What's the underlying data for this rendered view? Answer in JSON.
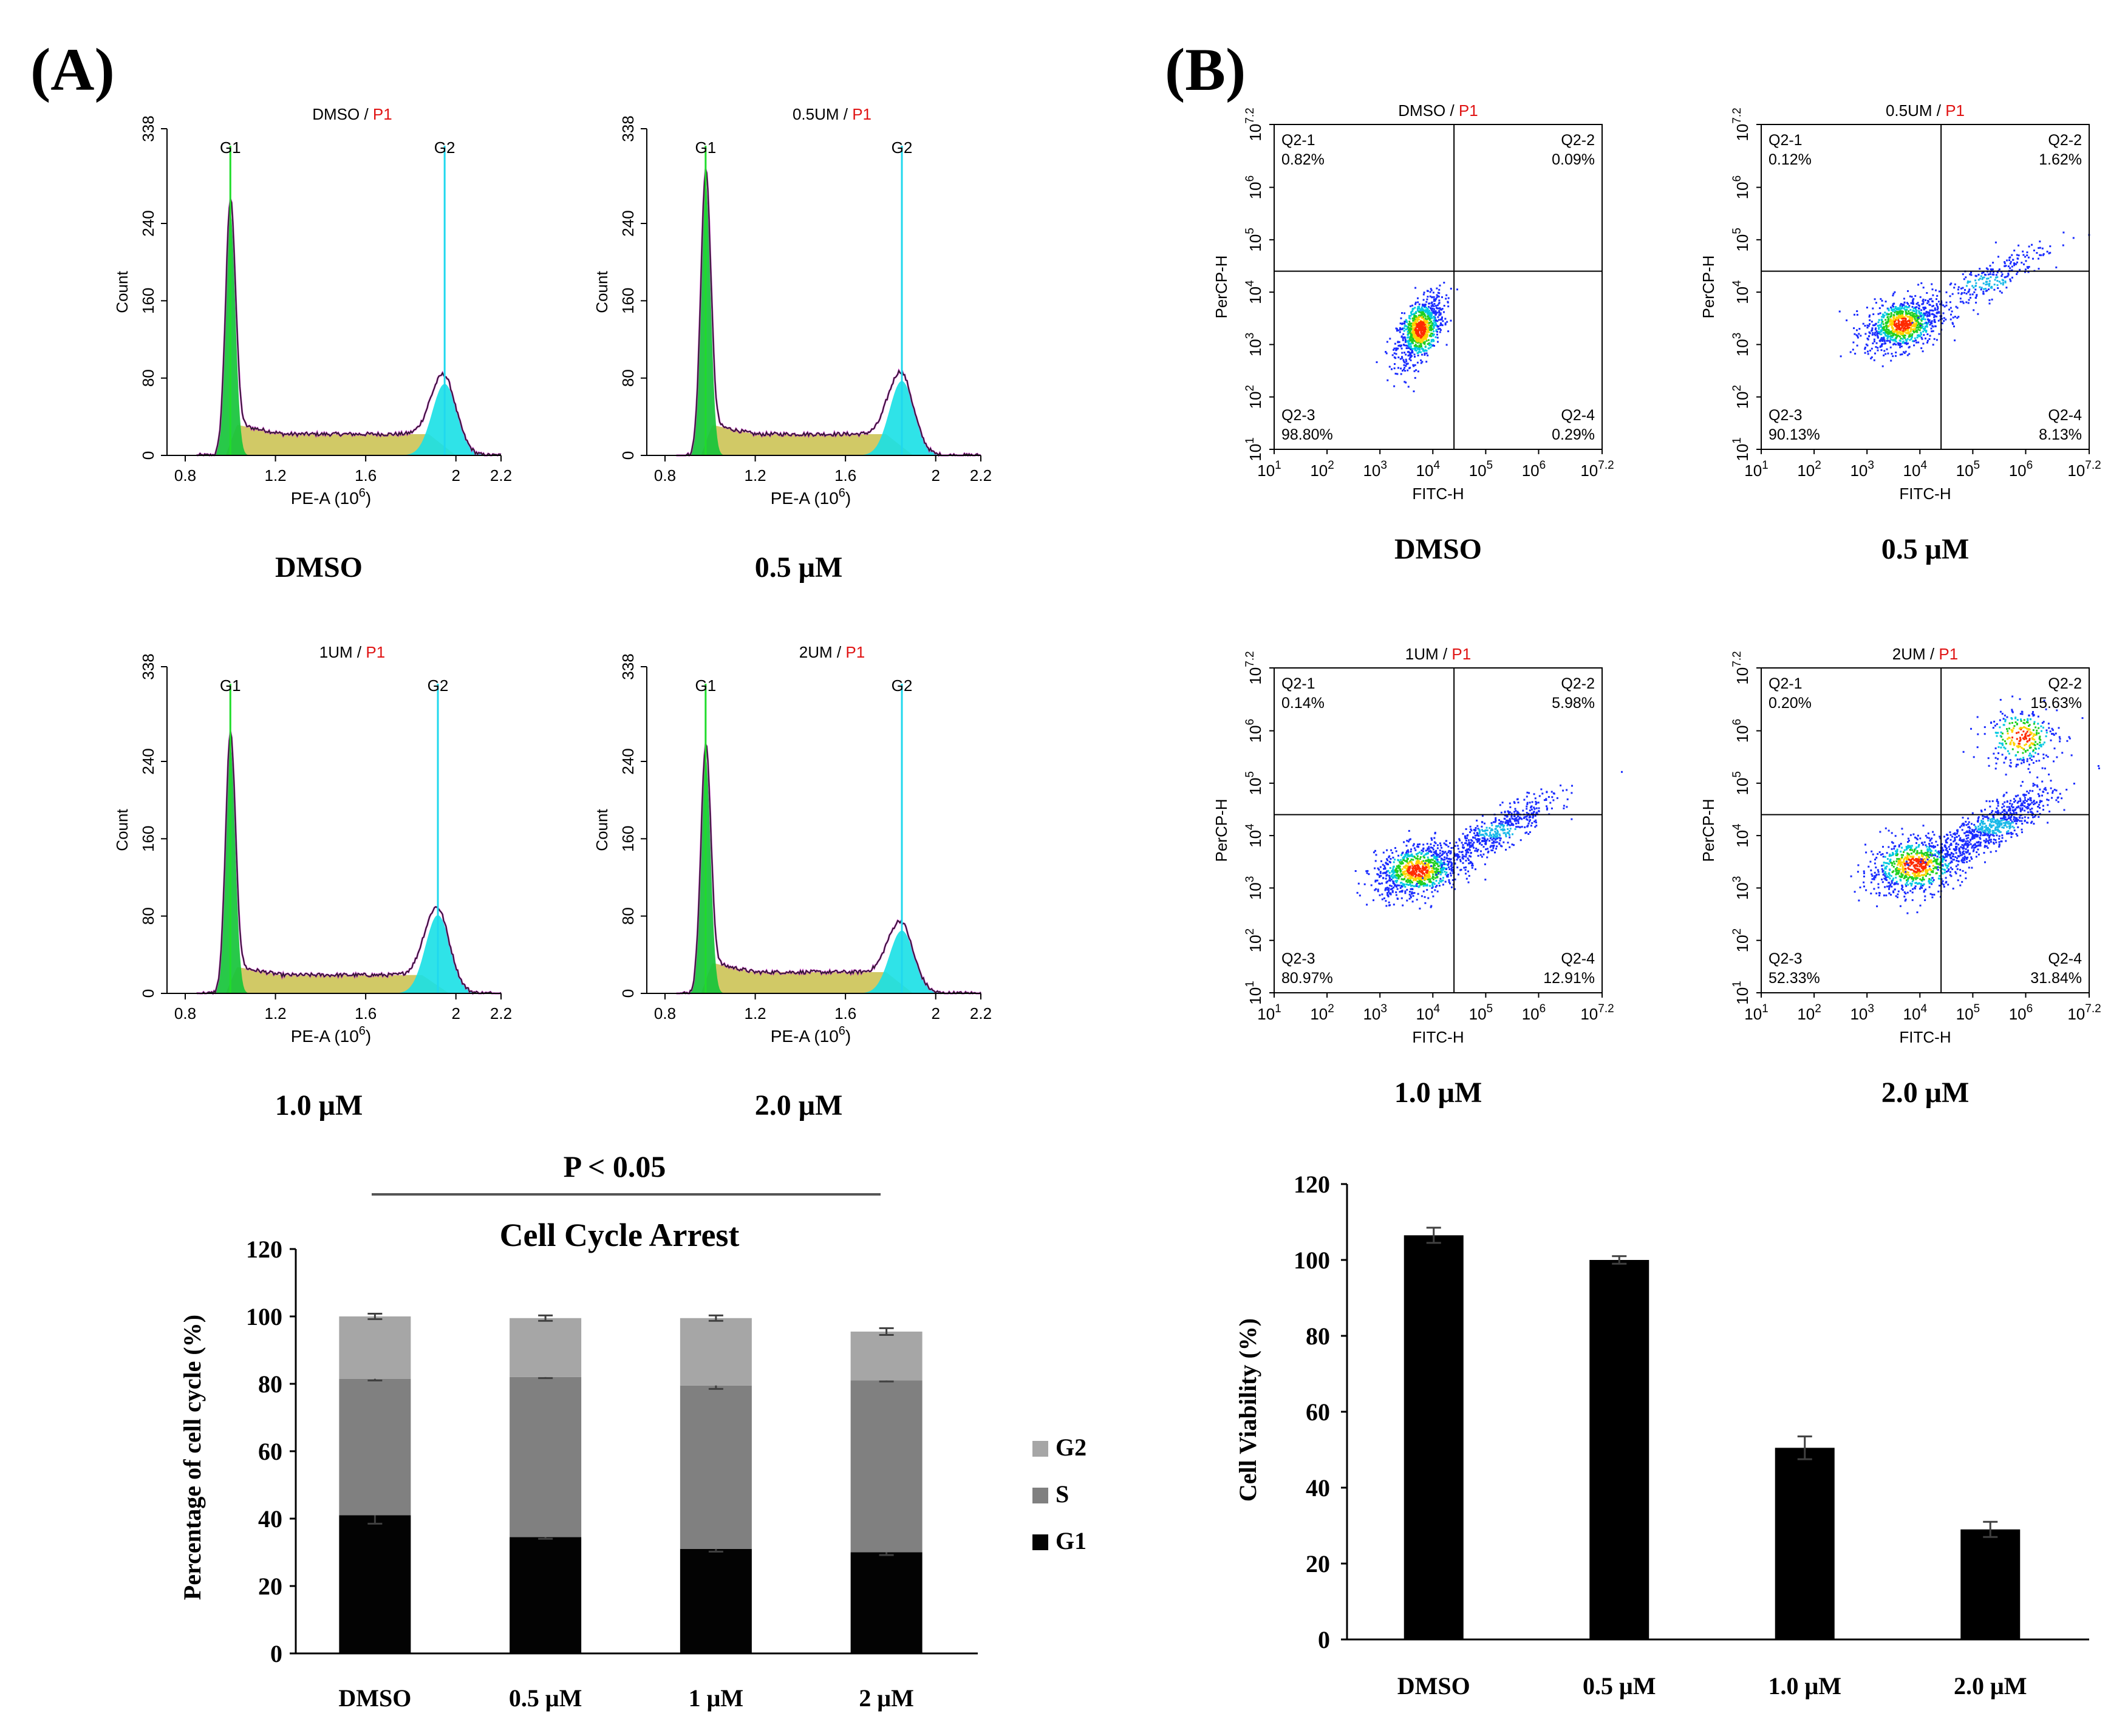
{
  "panels": {
    "a": {
      "label": "(A)"
    },
    "b": {
      "label": "(B)"
    }
  },
  "colors": {
    "g1_fill": "#16c43a",
    "g1_line": "#1fdc2a",
    "s_fill": "#d1c966",
    "g2_fill": "#18e0e6",
    "g2_line": "#1fd8ee",
    "envelope": "#c330c3",
    "curve": "#202020",
    "sample_red": "#e01414",
    "bar_black": "#000000",
    "stack_g1": "#030303",
    "stack_s": "#808080",
    "stack_g2": "#a6a6a6"
  },
  "histograms": [
    {
      "sample": "DMSO",
      "gate": "P1",
      "caption": "DMSO",
      "g1_pos": 1.0,
      "g2_pos": 1.95,
      "g1_peak": 252,
      "g2_peak": 74,
      "s_level": 22
    },
    {
      "sample": "0.5UM",
      "gate": "P1",
      "caption": "0.5 μM",
      "g1_pos": 0.98,
      "g2_pos": 1.85,
      "g1_peak": 283,
      "g2_peak": 77,
      "s_level": 22
    },
    {
      "sample": "1UM",
      "gate": "P1",
      "caption": "1.0 μM",
      "g1_pos": 1.0,
      "g2_pos": 1.92,
      "g1_peak": 258,
      "g2_peak": 81,
      "s_level": 19
    },
    {
      "sample": "2UM",
      "gate": "P1",
      "caption": "2.0 μM",
      "g1_pos": 0.98,
      "g2_pos": 1.85,
      "g1_peak": 245,
      "g2_peak": 65,
      "s_level": 22
    }
  ],
  "hist_axes": {
    "xlabel_main": "PE-A (10",
    "xlabel_exp": "6",
    "xlabel_close": ")",
    "ylabel": "Count",
    "xlim": [
      0.8,
      2.2
    ],
    "ylim": [
      0,
      338
    ],
    "x_ticks": [
      "0.8",
      "1.2",
      "1.6",
      "2",
      "2.2"
    ],
    "y_ticks": [
      "0",
      "80",
      "160",
      "240",
      "338"
    ],
    "g1_label": "G1",
    "g2_label": "G2"
  },
  "scatters": [
    {
      "sample": "DMSO",
      "gate": "P1",
      "caption": "DMSO",
      "q1": "Q2-1",
      "q1v": "0.82%",
      "q2": "Q2-2",
      "q2v": "0.09%",
      "q3": "Q2-3",
      "q3v": "98.80%",
      "q4": "Q2-4",
      "q4v": "0.29%"
    },
    {
      "sample": "0.5UM",
      "gate": "P1",
      "caption": "0.5 μM",
      "q1": "Q2-1",
      "q1v": "0.12%",
      "q2": "Q2-2",
      "q2v": "1.62%",
      "q3": "Q2-3",
      "q3v": "90.13%",
      "q4": "Q2-4",
      "q4v": "8.13%"
    },
    {
      "sample": "1UM",
      "gate": "P1",
      "caption": "1.0 μM",
      "q1": "Q2-1",
      "q1v": "0.14%",
      "q2": "Q2-2",
      "q2v": "5.98%",
      "q3": "Q2-3",
      "q3v": "80.97%",
      "q4": "Q2-4",
      "q4v": "12.91%"
    },
    {
      "sample": "2UM",
      "gate": "P1",
      "caption": "2.0 μM",
      "q1": "Q2-1",
      "q1v": "0.20%",
      "q2": "Q2-2",
      "q2v": "15.63%",
      "q3": "Q2-3",
      "q3v": "52.33%",
      "q4": "Q2-4",
      "q4v": "31.84%"
    }
  ],
  "scatter_axes": {
    "xlabel": "FITC-H",
    "ylabel": "PerCP-H",
    "log_min": 1,
    "log_max": 7.2,
    "gate_log": 4.4,
    "tick_base": "10",
    "tick_exps": [
      "1",
      "2",
      "3",
      "4",
      "5",
      "6",
      "7.2"
    ]
  },
  "chart_data": [
    {
      "type": "bar",
      "stacked": true,
      "title": "Cell Cycle Arrest",
      "annotation": "P < 0.05",
      "categories": [
        "DMSO",
        "0.5 μM",
        "1 μM",
        "2 μM"
      ],
      "series": [
        {
          "name": "G1",
          "values": [
            41,
            34.5,
            31,
            30
          ],
          "errors": [
            2.5,
            0.5,
            0.8,
            0.8
          ]
        },
        {
          "name": "S",
          "values": [
            40.5,
            47.5,
            48.5,
            51
          ],
          "errors": [
            0.5,
            0.3,
            1.0,
            0.3
          ]
        },
        {
          "name": "G2",
          "values": [
            18.5,
            17.5,
            20,
            14.5
          ],
          "errors": [
            0.8,
            0.8,
            0.8,
            1.0
          ]
        }
      ],
      "legend_order": [
        "G2",
        "S",
        "G1"
      ],
      "ylabel": "Percentage of cell cycle (%)",
      "xlabel": "",
      "ylim": [
        0,
        120
      ],
      "yticks": [
        "0",
        "20",
        "40",
        "60",
        "80",
        "100",
        "120"
      ]
    },
    {
      "type": "bar",
      "categories": [
        "DMSO",
        "0.5 μM",
        "1.0 μM",
        "2.0 μM"
      ],
      "values": [
        106.5,
        100,
        50.5,
        29
      ],
      "errors": [
        2,
        1,
        3,
        2
      ],
      "ylabel": "Cell Viability (%)",
      "xlabel": "",
      "ylim": [
        0,
        120
      ],
      "yticks": [
        "0",
        "20",
        "40",
        "60",
        "80",
        "100",
        "120"
      ]
    }
  ]
}
